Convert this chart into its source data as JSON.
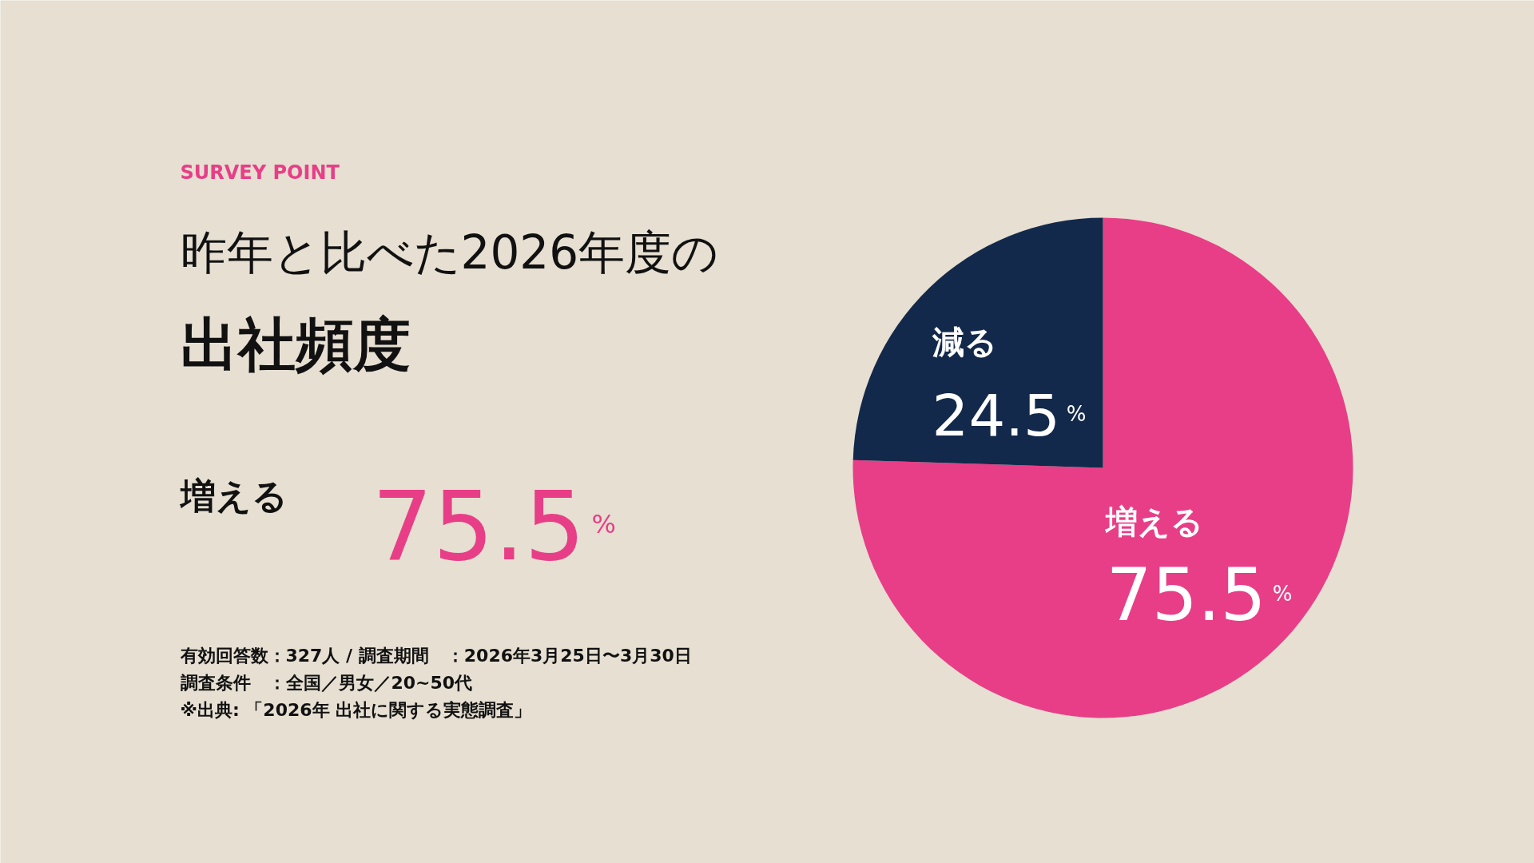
{
  "chart_data": {
    "type": "pie",
    "subtitle": "昨年と比べた2026年度の",
    "title": "出社頻度",
    "categories": [
      "増える",
      "減る"
    ],
    "values": [
      75.5,
      24.5
    ],
    "colors": [
      "#e83e87",
      "#13294b"
    ],
    "value_labels": [
      "75.5%",
      "24.5%"
    ],
    "annotations": [
      "SURVEY POINT",
      "増える",
      "75.5%",
      "有効回答数：327人 / 調査期間　：2026年3月25日〜3月30日",
      "調査条件　：全国／男女／20~50代",
      "※出典: 「2026年 出社に関する実態調査」"
    ]
  }
}
